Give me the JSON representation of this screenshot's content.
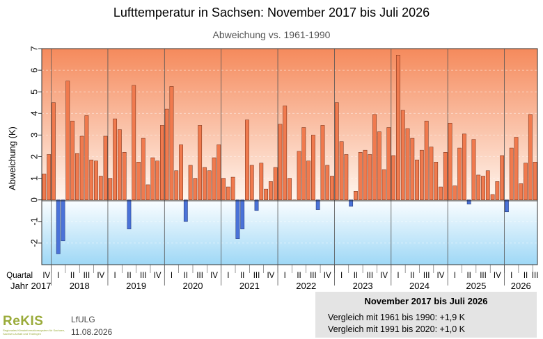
{
  "header": {
    "title": "Lufttemperatur in Sachsen: November 2017 bis Juli 2026",
    "subtitle": "Abweichung vs. 1961-1990"
  },
  "footer": {
    "logo": "ReKIS",
    "logo_sub": "Regionales Klimainformationssystem für Sachsen, Sachsen-Anhalt und Thüringen",
    "org": "LfULG",
    "date": "11.08.2026"
  },
  "info": {
    "title": "November 2017 bis Juli 2026",
    "line1": "Vergleich mit 1961 bis 1990: +1,9 K",
    "line2": "Vergleich mit 1991 bis 2020: +1,0 K"
  },
  "chart_data": {
    "type": "bar",
    "ylabel": "Abweichung (K)",
    "ylim": [
      -3,
      7
    ],
    "yticks": [
      "-2",
      "-1",
      "0",
      "1",
      "2",
      "3",
      "4",
      "5",
      "6",
      "7"
    ],
    "quartal_label": "Quartal",
    "jahr_label": "Jahr",
    "quarter_labels": [
      "I",
      "II",
      "III",
      "IV"
    ],
    "years": [
      "2017",
      "2018",
      "2019",
      "2020",
      "2021",
      "2022",
      "2023",
      "2024",
      "2025",
      "2026"
    ],
    "start": "2017-11",
    "end": "2026-07",
    "positive_color": "#f07a4e",
    "negative_color": "#4a72d8",
    "values": [
      1.2,
      2.1,
      4.5,
      -2.5,
      -1.9,
      5.5,
      3.65,
      2.15,
      2.95,
      3.9,
      1.85,
      1.8,
      1.1,
      2.95,
      1.0,
      3.75,
      3.25,
      2.2,
      -1.35,
      5.3,
      1.75,
      2.85,
      0.7,
      1.95,
      1.8,
      3.45,
      4.2,
      5.25,
      1.35,
      2.55,
      -1.0,
      1.6,
      1.0,
      3.45,
      1.5,
      1.35,
      1.95,
      2.55,
      1.0,
      0.6,
      1.05,
      -1.8,
      -1.35,
      3.7,
      1.6,
      -0.5,
      1.7,
      0.5,
      0.85,
      1.5,
      3.5,
      4.35,
      1.0,
      0.0,
      2.25,
      3.35,
      1.8,
      3.0,
      -0.45,
      3.45,
      1.6,
      1.1,
      4.5,
      2.7,
      2.1,
      -0.3,
      0.4,
      2.2,
      2.3,
      2.1,
      3.95,
      3.15,
      1.4,
      3.35,
      2.05,
      6.7,
      4.15,
      3.3,
      2.85,
      1.85,
      2.3,
      3.65,
      2.45,
      1.75,
      0.6,
      2.2,
      3.55,
      0.65,
      2.4,
      3.05,
      -0.2,
      2.8,
      1.15,
      1.1,
      1.35,
      0.25,
      0.85,
      2.05,
      -0.55,
      2.4,
      2.9,
      0.75,
      1.7,
      3.95,
      1.75
    ]
  }
}
